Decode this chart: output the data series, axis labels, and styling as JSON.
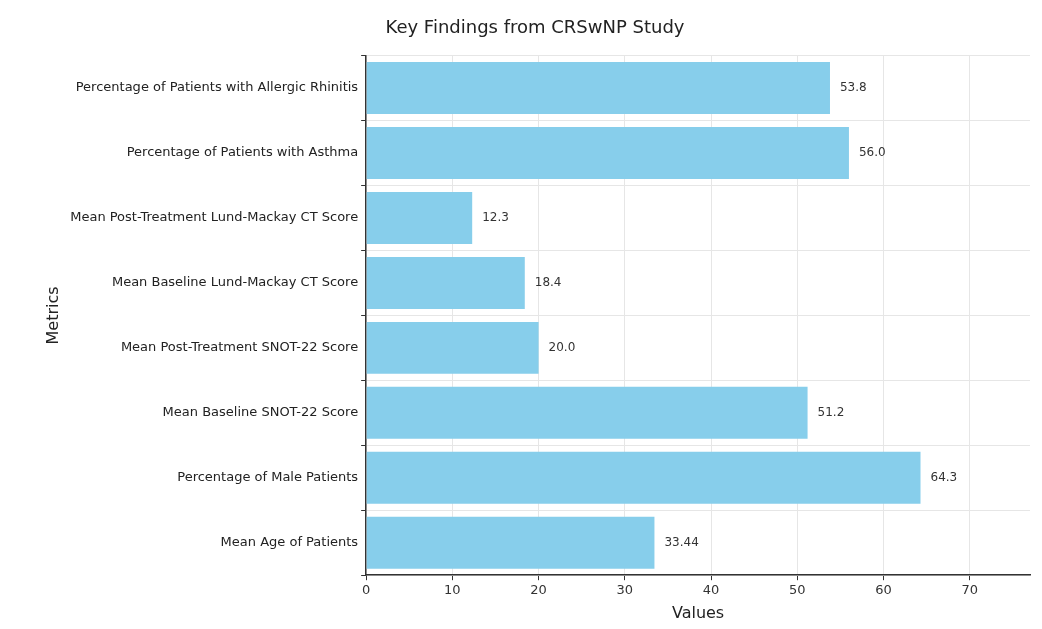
{
  "chart_data": {
    "type": "bar",
    "orientation": "horizontal",
    "title": "Key Findings from CRSwNP Study",
    "xlabel": "Values",
    "ylabel": "Metrics",
    "categories": [
      "Percentage of Patients with Allergic Rhinitis",
      "Percentage of Patients with Asthma",
      "Mean Post-Treatment Lund-Mackay CT Score",
      "Mean Baseline Lund-Mackay CT Score",
      "Mean Post-Treatment SNOT-22 Score",
      "Mean Baseline SNOT-22 Score",
      "Percentage of Male Patients",
      "Mean Age of Patients"
    ],
    "values": [
      53.8,
      56.0,
      12.3,
      18.4,
      20.0,
      51.2,
      64.3,
      33.44
    ],
    "value_labels": [
      "53.8",
      "56.0",
      "12.3",
      "18.4",
      "20.0",
      "51.2",
      "64.3",
      "33.44"
    ],
    "color": "#87ceeb",
    "xlim": [
      0,
      77
    ],
    "xticks": [
      0,
      10,
      20,
      30,
      40,
      50,
      60,
      70
    ],
    "grid": true
  }
}
